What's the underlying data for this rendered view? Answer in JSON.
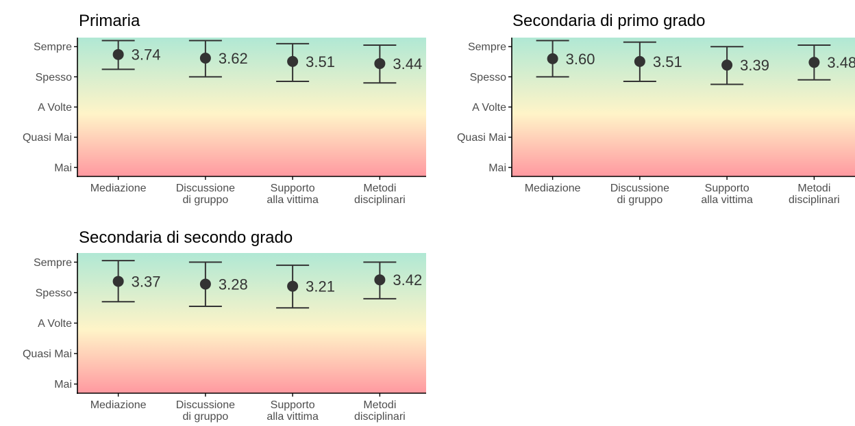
{
  "chart_data": [
    {
      "type": "errorbar-point",
      "title": "Primaria",
      "categories": [
        [
          "Mediazione"
        ],
        [
          "Discussione",
          "di gruppo"
        ],
        [
          "Supporto",
          "alla vittima"
        ],
        [
          "Metodi",
          "disciplinari"
        ]
      ],
      "values": [
        3.74,
        3.62,
        3.51,
        3.44
      ],
      "labels": [
        "3.74",
        "3.62",
        "3.51",
        "3.44"
      ],
      "lower": [
        3.25,
        3.0,
        2.85,
        2.8
      ],
      "upper": [
        4.2,
        4.2,
        4.1,
        4.05
      ],
      "y_ticks": [
        "Mai",
        "Quasi Mai",
        "A Volte",
        "Spesso",
        "Sempre"
      ],
      "ylim": [
        -0.3,
        4.3
      ]
    },
    {
      "type": "errorbar-point",
      "title": "Secondaria di primo grado",
      "categories": [
        [
          "Mediazione"
        ],
        [
          "Discussione",
          "di gruppo"
        ],
        [
          "Supporto",
          "alla vittima"
        ],
        [
          "Metodi",
          "disciplinari"
        ]
      ],
      "values": [
        3.6,
        3.51,
        3.39,
        3.48
      ],
      "labels": [
        "3.60",
        "3.51",
        "3.39",
        "3.48"
      ],
      "lower": [
        3.0,
        2.85,
        2.75,
        2.9
      ],
      "upper": [
        4.2,
        4.15,
        4.0,
        4.05
      ],
      "y_ticks": [
        "Mai",
        "Quasi Mai",
        "A Volte",
        "Spesso",
        "Sempre"
      ],
      "ylim": [
        -0.3,
        4.3
      ]
    },
    {
      "type": "errorbar-point",
      "title": "Secondaria di secondo grado",
      "categories": [
        [
          "Mediazione"
        ],
        [
          "Discussione",
          "di gruppo"
        ],
        [
          "Supporto",
          "alla vittima"
        ],
        [
          "Metodi",
          "disciplinari"
        ]
      ],
      "values": [
        3.37,
        3.28,
        3.21,
        3.42
      ],
      "labels": [
        "3.37",
        "3.28",
        "3.21",
        "3.42"
      ],
      "lower": [
        2.7,
        2.55,
        2.5,
        2.8
      ],
      "upper": [
        4.05,
        4.0,
        3.9,
        4.0
      ],
      "y_ticks": [
        "Mai",
        "Quasi Mai",
        "A Volte",
        "Spesso",
        "Sempre"
      ],
      "ylim": [
        -0.3,
        4.3
      ]
    }
  ],
  "colors": {
    "gradient_top": "#b0e8d4",
    "gradient_mid": "#fff4c8",
    "gradient_bottom": "#ff99a0",
    "marks": "#333333",
    "axis": "#000000",
    "tick_text": "#4d4d4d"
  }
}
